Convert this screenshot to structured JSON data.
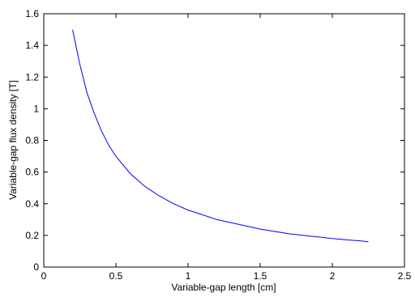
{
  "chart_data": {
    "type": "line",
    "title": "",
    "xlabel": "Variable-gap length [cm]",
    "ylabel": "Variable-gap flux density [T]",
    "xlim": [
      0,
      2.5
    ],
    "ylim": [
      0,
      1.6
    ],
    "xticks": [
      0,
      0.5,
      1,
      1.5,
      2,
      2.5
    ],
    "yticks": [
      0,
      0.2,
      0.4,
      0.6,
      0.8,
      1,
      1.2,
      1.4,
      1.6
    ],
    "xtick_labels": [
      "0",
      "0.5",
      "1",
      "1.5",
      "2",
      "2.5"
    ],
    "ytick_labels": [
      "0",
      "0.2",
      "0.4",
      "0.6",
      "0.8",
      "1",
      "1.2",
      "1.4",
      "1.6"
    ],
    "grid": false,
    "legend": "none",
    "series": [
      {
        "color": "#0000ff",
        "x": [
          0.2,
          0.25,
          0.3,
          0.35,
          0.4,
          0.45,
          0.5,
          0.6,
          0.7,
          0.8,
          0.9,
          1.0,
          1.1,
          1.2,
          1.3,
          1.4,
          1.5,
          1.6,
          1.7,
          1.8,
          1.9,
          2.0,
          2.1,
          2.2,
          2.25
        ],
        "y": [
          1.5,
          1.28,
          1.1,
          0.97,
          0.86,
          0.77,
          0.7,
          0.59,
          0.51,
          0.45,
          0.4,
          0.36,
          0.33,
          0.3,
          0.28,
          0.26,
          0.24,
          0.225,
          0.21,
          0.2,
          0.19,
          0.18,
          0.172,
          0.165,
          0.16
        ]
      }
    ]
  }
}
